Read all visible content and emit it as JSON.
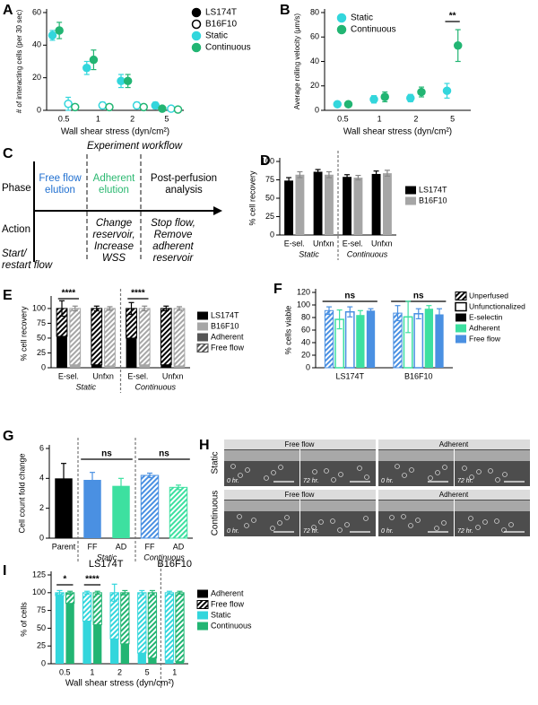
{
  "chart_data": [
    {
      "panel": "A",
      "type": "scatter",
      "categories": [
        "0.5",
        "1",
        "2",
        "5"
      ],
      "xlabel": "Wall shear stress (dyn/cm²)",
      "ylabel": "# of interacting cells (per 30 sec)",
      "ylim": [
        0,
        60
      ],
      "yticks": [
        0,
        20,
        40,
        60
      ],
      "series": [
        {
          "color": "#33d6dc",
          "filled": true,
          "values": [
            46,
            26,
            18,
            3
          ],
          "errors": [
            3,
            4,
            4,
            2
          ]
        },
        {
          "color": "#22b573",
          "filled": true,
          "values": [
            49,
            31,
            18,
            1
          ],
          "errors": [
            5,
            6,
            4,
            1
          ]
        },
        {
          "color": "#33d6dc",
          "filled": false,
          "values": [
            4,
            3,
            3,
            1
          ],
          "errors": [
            4,
            2,
            2,
            1
          ]
        },
        {
          "color": "#22b573",
          "filled": false,
          "values": [
            2,
            2,
            2,
            0.5
          ],
          "errors": [
            1,
            1,
            1,
            0.5
          ]
        }
      ],
      "legend": [
        {
          "name": "LS174T",
          "color": "#000000",
          "filled": true
        },
        {
          "name": "B16F10",
          "color": "#000000",
          "filled": false
        },
        {
          "name": "Static",
          "color": "#33d6dc",
          "filled": true
        },
        {
          "name": "Continuous",
          "color": "#22b573",
          "filled": true
        }
      ]
    },
    {
      "panel": "B",
      "type": "scatter",
      "categories": [
        "0.5",
        "1",
        "2",
        "5"
      ],
      "xlabel": "Wall shear stress (dyn/cm²)",
      "ylabel": "Average rolling velocity (μm/s)",
      "ylim": [
        0,
        80
      ],
      "yticks": [
        0,
        20,
        40,
        60,
        80
      ],
      "series": [
        {
          "color": "#33d6dc",
          "filled": true,
          "values": [
            5,
            9,
            10,
            16
          ],
          "errors": [
            1,
            3,
            3,
            6
          ]
        },
        {
          "color": "#22b573",
          "filled": true,
          "values": [
            5,
            11,
            15,
            53
          ],
          "errors": [
            2,
            4,
            4,
            13
          ]
        }
      ],
      "legend": [
        {
          "name": "Static",
          "color": "#33d6dc",
          "filled": true
        },
        {
          "name": "Continuous",
          "color": "#22b573",
          "filled": true
        }
      ],
      "annotations": [
        "**"
      ]
    },
    {
      "panel": "D",
      "type": "bar",
      "categories": [
        "E-sel.",
        "Unfxn",
        "E-sel.",
        "Unfxn"
      ],
      "group_labels": [
        "Static",
        "Continuous"
      ],
      "ylabel": "% cell recovery",
      "ylim": [
        0,
        100
      ],
      "yticks": [
        0,
        25,
        50,
        75,
        100
      ],
      "slots": [
        [
          {
            "color": "#000000",
            "fill": "solid",
            "values": [
              74,
              86,
              79,
              83
            ],
            "errors": [
              4,
              3,
              3,
              4
            ]
          }
        ],
        [
          {
            "color": "#a6a6a6",
            "fill": "solid",
            "values": [
              82,
              82,
              78,
              84
            ],
            "errors": [
              4,
              4,
              3,
              4
            ]
          }
        ]
      ],
      "legend": [
        {
          "name": "LS174T",
          "color": "#000000",
          "fill": "solid"
        },
        {
          "name": "B16F10",
          "color": "#a6a6a6",
          "fill": "solid"
        }
      ]
    },
    {
      "panel": "E",
      "type": "bar",
      "categories": [
        "E-sel.",
        "Unfxn",
        "E-sel.",
        "Unfxn"
      ],
      "group_labels": [
        "Static",
        "Continuous"
      ],
      "ylabel": "% cell recovery",
      "ylim": [
        0,
        115
      ],
      "yticks": [
        0,
        25,
        50,
        75,
        100
      ],
      "slots": [
        [
          {
            "color": "#000000",
            "fill": "solid",
            "values": [
              53,
              5,
              50,
              5
            ]
          },
          {
            "color": "#000000",
            "fill": "hatch",
            "values": [
              47,
              95,
              50,
              95
            ],
            "errors": [
              13,
              4,
              10,
              4
            ]
          }
        ],
        [
          {
            "color": "#a6a6a6",
            "fill": "solid",
            "values": [
              5,
              3,
              5,
              3
            ]
          },
          {
            "color": "#a6a6a6",
            "fill": "hatch",
            "values": [
              95,
              97,
              95,
              97
            ],
            "errors": [
              4,
              3,
              4,
              3
            ]
          }
        ]
      ],
      "legend": [
        {
          "name": "LS174T",
          "color": "#000000",
          "fill": "solid"
        },
        {
          "name": "B16F10",
          "color": "#a6a6a6",
          "fill": "solid"
        },
        {
          "name": "Adherent",
          "color": "#555555",
          "fill": "solid"
        },
        {
          "name": "Free flow",
          "color": "#555555",
          "fill": "hatch"
        }
      ],
      "annotations": [
        "****",
        "****"
      ]
    },
    {
      "panel": "F",
      "type": "bar",
      "categories": [
        "LS174T",
        "B16F10"
      ],
      "ylabel": "% cells viable",
      "ylim": [
        0,
        120
      ],
      "yticks": [
        0,
        20,
        40,
        60,
        80,
        100,
        120
      ],
      "slots": [
        [
          {
            "color": "#4a90e2",
            "fill": "hatch",
            "values": [
              91,
              87
            ],
            "errors": [
              6,
              12
            ]
          }
        ],
        [
          {
            "color": "#3de0a0",
            "fill": "open",
            "values": [
              77,
              81
            ],
            "errors": [
              15,
              25
            ]
          }
        ],
        [
          {
            "color": "#4a90e2",
            "fill": "open",
            "values": [
              89,
              86
            ],
            "errors": [
              8,
              8
            ]
          }
        ],
        [
          {
            "color": "#3de0a0",
            "fill": "solid",
            "values": [
              84,
              94
            ],
            "errors": [
              7,
              5
            ]
          }
        ],
        [
          {
            "color": "#4a90e2",
            "fill": "solid",
            "values": [
              91,
              85
            ],
            "errors": [
              3,
              9
            ]
          }
        ]
      ],
      "legend": [
        {
          "name": "Unperfused",
          "color": "#000000",
          "fill": "hatch"
        },
        {
          "name": "Unfunctionalized",
          "color": "#000000",
          "fill": "open"
        },
        {
          "name": "E-selectin",
          "color": "#000000",
          "fill": "solid"
        },
        {
          "name": "Adherent",
          "color": "#3de0a0",
          "fill": "solid"
        },
        {
          "name": "Free flow",
          "color": "#4a90e2",
          "fill": "solid"
        }
      ],
      "annotations": [
        "ns",
        "ns"
      ]
    },
    {
      "panel": "G",
      "type": "bar",
      "categories": [
        "Parent",
        "FF",
        "AD",
        "FF",
        "AD"
      ],
      "group_labels": [
        "Static",
        "Continuous"
      ],
      "ylabel": "Cell count fold change",
      "ylim": [
        0,
        6
      ],
      "yticks": [
        0,
        2,
        4,
        6
      ],
      "slots": [
        [
          {
            "colors": [
              "#000000",
              "#4a90e2",
              "#3de0a0",
              "#4a90e2",
              "#3de0a0"
            ],
            "fills": [
              "solid",
              "solid",
              "solid",
              "hatch",
              "hatch"
            ],
            "values": [
              4.0,
              3.9,
              3.5,
              4.2,
              3.4
            ],
            "errors": [
              1.0,
              0.5,
              0.5,
              0.15,
              0.15
            ]
          }
        ]
      ],
      "annotations": [
        "ns",
        "ns"
      ]
    },
    {
      "panel": "I",
      "type": "bar",
      "categories": [
        "0.5",
        "1",
        "2",
        "5",
        "1"
      ],
      "group_labels": [
        "LS174T",
        "B16F10"
      ],
      "xlabel": "Wall shear stress (dyn/cm²)",
      "ylabel": "% of cells",
      "ylim": [
        0,
        125
      ],
      "yticks": [
        0,
        25,
        50,
        75,
        100,
        125
      ],
      "slots": [
        [
          {
            "color": "#33d6dc",
            "fill": "solid",
            "values": [
              96,
              60,
              35,
              15,
              5
            ]
          },
          {
            "color": "#33d6dc",
            "fill": "hatch",
            "values": [
              4,
              40,
              65,
              85,
              95
            ],
            "errors": [
              3,
              2,
              12,
              3,
              2
            ]
          }
        ],
        [
          {
            "color": "#22b573",
            "fill": "solid",
            "values": [
              85,
              55,
              28,
              8,
              3
            ]
          },
          {
            "color": "#22b573",
            "fill": "hatch",
            "values": [
              15,
              45,
              72,
              92,
              97
            ],
            "errors": [
              2,
              2,
              3,
              3,
              2
            ]
          }
        ]
      ],
      "legend": [
        {
          "name": "Adherent",
          "color": "#000000",
          "fill": "solid"
        },
        {
          "name": "Free flow",
          "color": "#000000",
          "fill": "hatch"
        },
        {
          "name": "Static",
          "color": "#33d6dc",
          "fill": "solid"
        },
        {
          "name": "Continuous",
          "color": "#22b573",
          "fill": "solid"
        }
      ],
      "annotations": [
        "*",
        "****"
      ]
    }
  ],
  "workflow": {
    "panel": "C",
    "title": "Experiment workflow",
    "rows": [
      "Phase",
      "Action"
    ],
    "phases": [
      [
        "Free flow",
        "elution"
      ],
      [
        "Adherent",
        "elution"
      ],
      [
        "Post-perfusion",
        "analysis"
      ]
    ],
    "actions": [
      [
        "Start/",
        "restart flow"
      ],
      [
        "Change",
        "reservoir,",
        "Increase",
        "WSS"
      ],
      [
        "Stop flow,",
        "Remove",
        "adherent",
        "reservoir"
      ]
    ]
  },
  "micrographs": {
    "panel": "H",
    "columns": [
      "Free flow",
      "Adherent"
    ],
    "rows": [
      "Static",
      "Continuous"
    ],
    "times": [
      "0 hr.",
      "72 hr."
    ]
  }
}
